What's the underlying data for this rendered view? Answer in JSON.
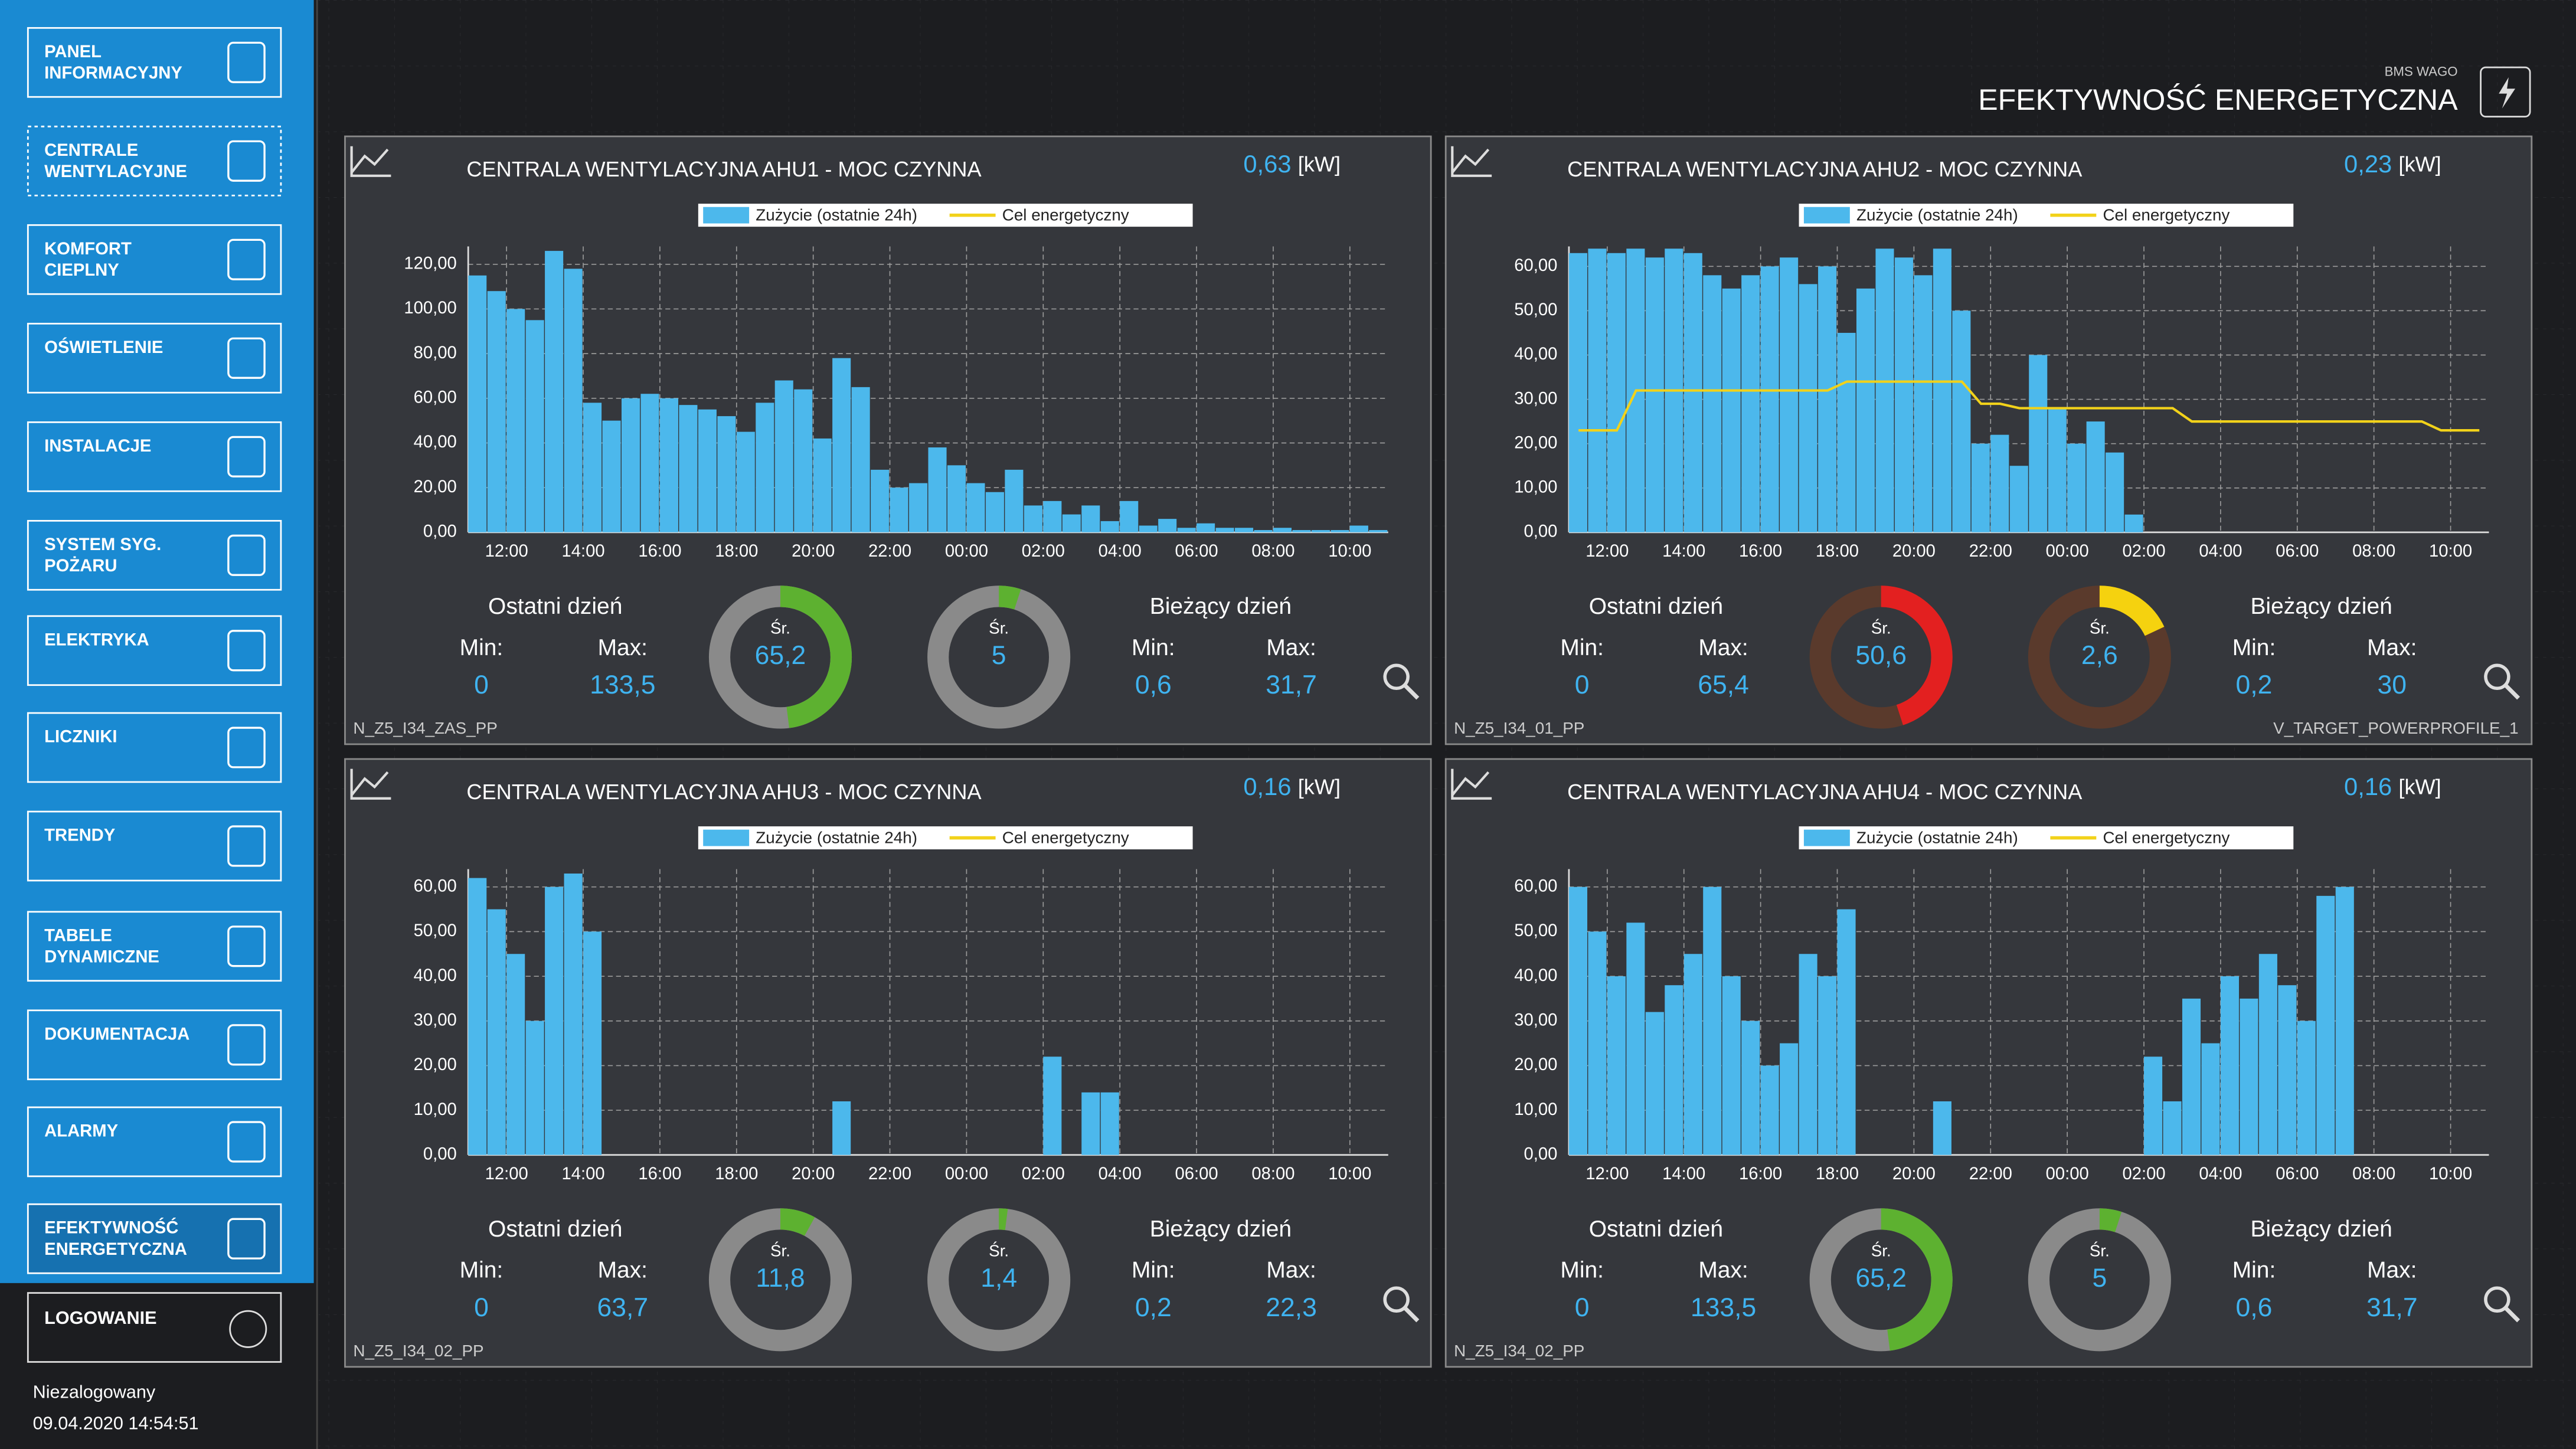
{
  "header": {
    "subtitle": "BMS WAGO",
    "title": "EFEKTYWNOŚĆ ENERGETYCZNA"
  },
  "menu": [
    {
      "lines": [
        "PANEL",
        "INFORMACYJNY"
      ]
    },
    {
      "lines": [
        "CENTRALE",
        "WENTYLACYJNE"
      ]
    },
    {
      "lines": [
        "KOMFORT",
        "CIEPLNY"
      ]
    },
    {
      "lines": [
        "OŚWIETLENIE"
      ]
    },
    {
      "lines": [
        "INSTALACJE"
      ]
    },
    {
      "lines": [
        "SYSTEM SYG.",
        "POŻARU"
      ]
    },
    {
      "lines": [
        "ELEKTRYKA"
      ]
    },
    {
      "lines": [
        "LICZNIKI"
      ]
    },
    {
      "lines": [
        "TRENDY"
      ]
    },
    {
      "lines": [
        "TABELE",
        "DYNAMICZNE"
      ]
    },
    {
      "lines": [
        "DOKUMENTACJA"
      ]
    },
    {
      "lines": [
        "ALARMY"
      ]
    },
    {
      "lines": [
        "EFEKTYWNOŚĆ",
        "ENERGETYCZNA"
      ]
    }
  ],
  "login": "LOGOWANIE",
  "user": "Niezalogowany",
  "datetime": "09.04.2020 14:54:51",
  "panels": [
    {
      "title": "CENTRALA WENTYLACYJNA AHU1 - MOC CZYNNA",
      "value": "0,63",
      "unit": "[kW]",
      "tag": "N_Z5_I34_ZAS_PP",
      "chart": {
        "type": "bar",
        "legend": [
          {
            "name": "Zużycie (ostatnie 24h)",
            "color": "#4cb8ec"
          },
          {
            "name": "Cel energetyczny",
            "color": "#f2d21a"
          }
        ],
        "x": [
          11.25,
          11.75,
          12.25,
          12.75,
          13.25,
          13.75,
          14.25,
          14.75,
          15.25,
          15.75,
          16.25,
          16.75,
          17.25,
          17.75,
          18.25,
          18.75,
          19.25,
          19.75,
          20.25,
          20.75,
          21.25,
          21.75,
          22.25,
          22.75,
          23.25,
          23.75,
          24.25,
          24.75,
          25.25,
          25.75,
          26.25,
          26.75,
          27.25,
          27.75,
          28.25,
          28.75,
          29.25,
          29.75,
          30.25,
          30.75,
          31.25,
          31.75,
          32.25,
          32.75,
          33.25,
          33.75,
          34.25,
          34.75
        ],
        "values": [
          115,
          108,
          100,
          95,
          126,
          118,
          58,
          50,
          60,
          62,
          60,
          57,
          55,
          52,
          45,
          58,
          68,
          64,
          42,
          78,
          65,
          28,
          20,
          22,
          38,
          30,
          22,
          18,
          28,
          12,
          14,
          8,
          12,
          5,
          14,
          3,
          6,
          2,
          4,
          2,
          2,
          1,
          2,
          1,
          1,
          1,
          3,
          1
        ],
        "xlim": [
          11,
          35
        ],
        "xticks": [
          {
            "value": 12,
            "label": "12:00"
          },
          {
            "value": 14,
            "label": "14:00"
          },
          {
            "value": 16,
            "label": "16:00"
          },
          {
            "value": 18,
            "label": "18:00"
          },
          {
            "value": 20,
            "label": "20:00"
          },
          {
            "value": 22,
            "label": "22:00"
          },
          {
            "value": 24,
            "label": "00:00"
          },
          {
            "value": 26,
            "label": "02:00"
          },
          {
            "value": 28,
            "label": "04:00"
          },
          {
            "value": 30,
            "label": "06:00"
          },
          {
            "value": 32,
            "label": "08:00"
          },
          {
            "value": 34,
            "label": "10:00"
          }
        ],
        "ylim": [
          0,
          128
        ],
        "yticks": [
          {
            "value": 0,
            "label": "0,00"
          },
          {
            "value": 20,
            "label": "20,00"
          },
          {
            "value": 40,
            "label": "40,00"
          },
          {
            "value": 60,
            "label": "60,00"
          },
          {
            "value": 80,
            "label": "80,00"
          },
          {
            "value": 100,
            "label": "100,00"
          },
          {
            "value": 120,
            "label": "120,00"
          }
        ],
        "grid": true
      },
      "last": {
        "label": "Ostatni dzień",
        "min_label": "Min:",
        "max_label": "Max:",
        "min": "0",
        "max": "133,5"
      },
      "current": {
        "label": "Bieżący dzień",
        "min_label": "Min:",
        "max_label": "Max:",
        "min": "0,6",
        "max": "31,7"
      },
      "donuts": [
        {
          "label": "Śr.",
          "value": "65,2",
          "fill": 48,
          "color": "#5db130",
          "track": "#8a8a8a"
        },
        {
          "label": "Śr.",
          "value": "5",
          "fill": 5,
          "color": "#5db130",
          "track": "#8a8a8a"
        }
      ]
    },
    {
      "title": "CENTRALA WENTYLACYJNA AHU2 - MOC CZYNNA",
      "value": "0,23",
      "unit": "[kW]",
      "tag": "N_Z5_I34_01_PP",
      "tag_right": "V_TARGET_POWERPROFILE_1",
      "chart": {
        "type": "bar",
        "legend": [
          {
            "name": "Zużycie (ostatnie 24h)",
            "color": "#4cb8ec"
          },
          {
            "name": "Cel energetyczny",
            "color": "#f2d21a"
          }
        ],
        "x": [
          11.25,
          11.75,
          12.25,
          12.75,
          13.25,
          13.75,
          14.25,
          14.75,
          15.25,
          15.75,
          16.25,
          16.75,
          17.25,
          17.75,
          18.25,
          18.75,
          19.25,
          19.75,
          20.25,
          20.75,
          21.25,
          21.75,
          22.25,
          22.75,
          23.25,
          23.75,
          24.25,
          24.75,
          25.25,
          25.75,
          26.25,
          26.75,
          27.25,
          27.75,
          28.25,
          28.75,
          29.25,
          29.75,
          30.25,
          30.75,
          31.25,
          31.75,
          32.25,
          32.75,
          33.25,
          33.75,
          34.25,
          34.75
        ],
        "values": [
          63,
          64,
          63,
          64,
          62,
          64,
          63,
          58,
          55,
          58,
          60,
          62,
          56,
          60,
          45,
          55,
          64,
          62,
          58,
          64,
          50,
          20,
          22,
          15,
          40,
          28,
          20,
          25,
          18,
          4,
          0,
          0,
          0,
          0,
          0,
          0,
          0,
          0,
          0,
          0,
          0,
          0,
          0,
          0,
          0,
          0,
          0,
          0
        ],
        "target": [
          23,
          23,
          23,
          32,
          32,
          32,
          32,
          32,
          32,
          32,
          32,
          32,
          32,
          32,
          34,
          34,
          34,
          34,
          34,
          34,
          34,
          29,
          29,
          28,
          28,
          28,
          28,
          28,
          28,
          28,
          28,
          28,
          25,
          25,
          25,
          25,
          25,
          25,
          25,
          25,
          25,
          25,
          25,
          25,
          25,
          23,
          23,
          23
        ],
        "xlim": [
          11,
          35
        ],
        "xticks": [
          {
            "value": 12,
            "label": "12:00"
          },
          {
            "value": 14,
            "label": "14:00"
          },
          {
            "value": 16,
            "label": "16:00"
          },
          {
            "value": 18,
            "label": "18:00"
          },
          {
            "value": 20,
            "label": "20:00"
          },
          {
            "value": 22,
            "label": "22:00"
          },
          {
            "value": 24,
            "label": "00:00"
          },
          {
            "value": 26,
            "label": "02:00"
          },
          {
            "value": 28,
            "label": "04:00"
          },
          {
            "value": 30,
            "label": "06:00"
          },
          {
            "value": 32,
            "label": "08:00"
          },
          {
            "value": 34,
            "label": "10:00"
          }
        ],
        "ylim": [
          0,
          64.5
        ],
        "yticks": [
          {
            "value": 0,
            "label": "0,00"
          },
          {
            "value": 10,
            "label": "10,00"
          },
          {
            "value": 20,
            "label": "20,00"
          },
          {
            "value": 30,
            "label": "30,00"
          },
          {
            "value": 40,
            "label": "40,00"
          },
          {
            "value": 50,
            "label": "50,00"
          },
          {
            "value": 60,
            "label": "60,00"
          }
        ],
        "grid": true
      },
      "last": {
        "label": "Ostatni dzień",
        "min_label": "Min:",
        "max_label": "Max:",
        "min": "0",
        "max": "65,4"
      },
      "current": {
        "label": "Bieżący dzień",
        "min_label": "Min:",
        "max_label": "Max:",
        "min": "0,2",
        "max": "30"
      },
      "donuts": [
        {
          "label": "Śr.",
          "value": "50,6",
          "fill": 45,
          "color": "#e32020",
          "track": "#5a3a2c"
        },
        {
          "label": "Śr.",
          "value": "2,6",
          "fill": 18,
          "color": "#f5d20f",
          "track": "#5a3a2c"
        }
      ]
    },
    {
      "title": "CENTRALA WENTYLACYJNA AHU3 - MOC CZYNNA",
      "value": "0,16",
      "unit": "[kW]",
      "tag": "N_Z5_I34_02_PP",
      "chart": {
        "type": "bar",
        "legend": [
          {
            "name": "Zużycie (ostatnie 24h)",
            "color": "#4cb8ec"
          },
          {
            "name": "Cel energetyczny",
            "color": "#f2d21a"
          }
        ],
        "x": [
          11.25,
          11.75,
          12.25,
          12.75,
          13.25,
          13.75,
          14.25,
          14.75,
          15.25,
          15.75,
          16.25,
          16.75,
          17.25,
          17.75,
          18.25,
          18.75,
          19.25,
          19.75,
          20.25,
          20.75,
          21.25,
          21.75,
          22.25,
          22.75,
          23.25,
          23.75,
          24.25,
          24.75,
          25.25,
          25.75,
          26.25,
          26.75,
          27.25,
          27.75,
          28.25,
          28.75,
          29.25,
          29.75,
          30.25,
          30.75,
          31.25,
          31.75,
          32.25,
          32.75,
          33.25,
          33.75,
          34.25,
          34.75
        ],
        "values": [
          62,
          55,
          45,
          30,
          60,
          63,
          50,
          0,
          0,
          0,
          0,
          0,
          0,
          0,
          0,
          0,
          0,
          0,
          0,
          12,
          0,
          0,
          0,
          0,
          0,
          0,
          0,
          0,
          0,
          0,
          22,
          0,
          14,
          14,
          0,
          0,
          0,
          0,
          0,
          0,
          0,
          0,
          0,
          0,
          0,
          0,
          0,
          0
        ],
        "xlim": [
          11,
          35
        ],
        "xticks": [
          {
            "value": 12,
            "label": "12:00"
          },
          {
            "value": 14,
            "label": "14:00"
          },
          {
            "value": 16,
            "label": "16:00"
          },
          {
            "value": 18,
            "label": "18:00"
          },
          {
            "value": 20,
            "label": "20:00"
          },
          {
            "value": 22,
            "label": "22:00"
          },
          {
            "value": 24,
            "label": "00:00"
          },
          {
            "value": 26,
            "label": "02:00"
          },
          {
            "value": 28,
            "label": "04:00"
          },
          {
            "value": 30,
            "label": "06:00"
          },
          {
            "value": 32,
            "label": "08:00"
          },
          {
            "value": 34,
            "label": "10:00"
          }
        ],
        "ylim": [
          0,
          64
        ],
        "yticks": [
          {
            "value": 0,
            "label": "0,00"
          },
          {
            "value": 10,
            "label": "10,00"
          },
          {
            "value": 20,
            "label": "20,00"
          },
          {
            "value": 30,
            "label": "30,00"
          },
          {
            "value": 40,
            "label": "40,00"
          },
          {
            "value": 50,
            "label": "50,00"
          },
          {
            "value": 60,
            "label": "60,00"
          }
        ],
        "grid": true
      },
      "last": {
        "label": "Ostatni dzień",
        "min_label": "Min:",
        "max_label": "Max:",
        "min": "0",
        "max": "63,7"
      },
      "current": {
        "label": "Bieżący dzień",
        "min_label": "Min:",
        "max_label": "Max:",
        "min": "0,2",
        "max": "22,3"
      },
      "donuts": [
        {
          "label": "Śr.",
          "value": "11,8",
          "fill": 8,
          "color": "#5db130",
          "track": "#8a8a8a"
        },
        {
          "label": "Śr.",
          "value": "1,4",
          "fill": 2,
          "color": "#5db130",
          "track": "#8a8a8a"
        }
      ]
    },
    {
      "title": "CENTRALA WENTYLACYJNA AHU4 - MOC CZYNNA",
      "value": "0,16",
      "unit": "[kW]",
      "tag": "N_Z5_I34_02_PP",
      "chart": {
        "type": "bar",
        "legend": [
          {
            "name": "Zużycie (ostatnie 24h)",
            "color": "#4cb8ec"
          },
          {
            "name": "Cel energetyczny",
            "color": "#f2d21a"
          }
        ],
        "x": [
          11.25,
          11.75,
          12.25,
          12.75,
          13.25,
          13.75,
          14.25,
          14.75,
          15.25,
          15.75,
          16.25,
          16.75,
          17.25,
          17.75,
          18.25,
          18.75,
          19.25,
          19.75,
          20.25,
          20.75,
          21.25,
          21.75,
          22.25,
          22.75,
          23.25,
          23.75,
          24.25,
          24.75,
          25.25,
          25.75,
          26.25,
          26.75,
          27.25,
          27.75,
          28.25,
          28.75,
          29.25,
          29.75,
          30.25,
          30.75,
          31.25,
          31.75,
          32.25,
          32.75,
          33.25,
          33.75,
          34.25,
          34.75
        ],
        "values": [
          60,
          50,
          40,
          52,
          32,
          38,
          45,
          60,
          40,
          30,
          20,
          25,
          45,
          40,
          55,
          0,
          0,
          0,
          0,
          12,
          0,
          0,
          0,
          0,
          0,
          0,
          0,
          0,
          0,
          0,
          22,
          12,
          35,
          25,
          40,
          35,
          45,
          38,
          30,
          58,
          60,
          0,
          0,
          0,
          0,
          0,
          0,
          0
        ],
        "xlim": [
          11,
          35
        ],
        "xticks": [
          {
            "value": 12,
            "label": "12:00"
          },
          {
            "value": 14,
            "label": "14:00"
          },
          {
            "value": 16,
            "label": "16:00"
          },
          {
            "value": 18,
            "label": "18:00"
          },
          {
            "value": 20,
            "label": "20:00"
          },
          {
            "value": 22,
            "label": "22:00"
          },
          {
            "value": 24,
            "label": "00:00"
          },
          {
            "value": 26,
            "label": "02:00"
          },
          {
            "value": 28,
            "label": "04:00"
          },
          {
            "value": 30,
            "label": "06:00"
          },
          {
            "value": 32,
            "label": "08:00"
          },
          {
            "value": 34,
            "label": "10:00"
          }
        ],
        "ylim": [
          0,
          64
        ],
        "yticks": [
          {
            "value": 0,
            "label": "0,00"
          },
          {
            "value": 10,
            "label": "10,00"
          },
          {
            "value": 20,
            "label": "20,00"
          },
          {
            "value": 30,
            "label": "30,00"
          },
          {
            "value": 40,
            "label": "40,00"
          },
          {
            "value": 50,
            "label": "50,00"
          },
          {
            "value": 60,
            "label": "60,00"
          }
        ],
        "grid": true
      },
      "last": {
        "label": "Ostatni dzień",
        "min_label": "Min:",
        "max_label": "Max:",
        "min": "0",
        "max": "133,5"
      },
      "current": {
        "label": "Bieżący dzień",
        "min_label": "Min:",
        "max_label": "Max:",
        "min": "0,6",
        "max": "31,7"
      },
      "donuts": [
        {
          "label": "Śr.",
          "value": "65,2",
          "fill": 48,
          "color": "#5db130",
          "track": "#8a8a8a"
        },
        {
          "label": "Śr.",
          "value": "5",
          "fill": 5,
          "color": "#5db130",
          "track": "#8a8a8a"
        }
      ]
    }
  ]
}
